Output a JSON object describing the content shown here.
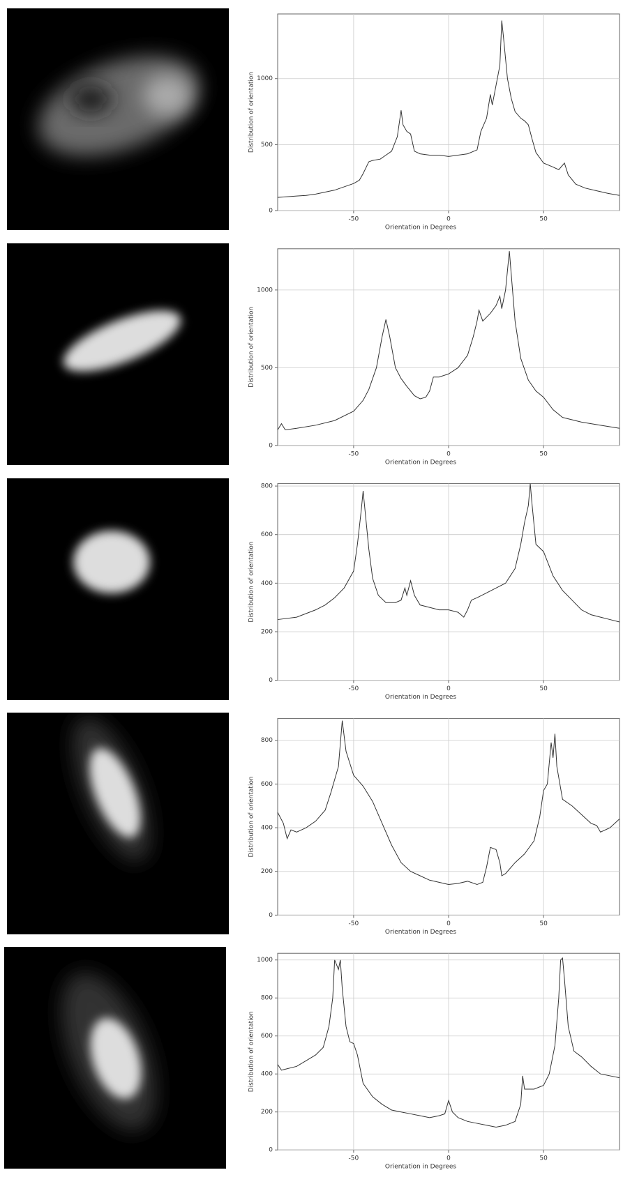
{
  "chart_data": [
    {
      "type": "line",
      "xlabel": "Orientation in Degrees",
      "ylabel": "Distribution of orientation",
      "xlim": [
        -90,
        90
      ],
      "xticks": [
        -50,
        0,
        50
      ],
      "ylim": [
        0,
        1490
      ],
      "yticks": [
        0,
        500,
        1000
      ],
      "grid": true,
      "series": [
        {
          "color": "#333333",
          "x": [
            -90,
            -85,
            -80,
            -75,
            -70,
            -65,
            -60,
            -55,
            -50,
            -47,
            -45,
            -42,
            -40,
            -36,
            -33,
            -30,
            -27,
            -25,
            -24,
            -22,
            -20,
            -18,
            -15,
            -10,
            -5,
            0,
            5,
            10,
            15,
            17,
            20,
            22,
            23,
            25,
            27,
            28,
            29,
            31,
            33,
            35,
            38,
            40,
            42,
            44,
            46,
            50,
            55,
            58,
            61,
            63,
            67,
            72,
            78,
            84,
            90
          ],
          "values": [
            100,
            105,
            110,
            115,
            125,
            140,
            155,
            180,
            205,
            230,
            280,
            370,
            380,
            390,
            420,
            450,
            560,
            760,
            650,
            600,
            580,
            450,
            430,
            420,
            420,
            410,
            420,
            430,
            460,
            600,
            700,
            880,
            800,
            950,
            1100,
            1440,
            1300,
            1000,
            850,
            750,
            700,
            680,
            650,
            540,
            440,
            360,
            330,
            310,
            360,
            270,
            200,
            170,
            150,
            130,
            115
          ]
        }
      ]
    },
    {
      "type": "line",
      "xlabel": "Orientation in Degrees",
      "ylabel": "Distribution of orientation",
      "xlim": [
        -90,
        90
      ],
      "xticks": [
        -50,
        0,
        50
      ],
      "ylim": [
        0,
        1265
      ],
      "yticks": [
        0,
        500,
        1000
      ],
      "grid": true,
      "series": [
        {
          "color": "#333333",
          "x": [
            -90,
            -88,
            -86,
            -80,
            -70,
            -60,
            -50,
            -45,
            -42,
            -38,
            -35,
            -33,
            -31,
            -28,
            -25,
            -22,
            -18,
            -15,
            -12,
            -10,
            -8,
            -5,
            0,
            5,
            10,
            13,
            15,
            16,
            18,
            22,
            25,
            27,
            28,
            30,
            32,
            33,
            35,
            38,
            42,
            46,
            50,
            55,
            60,
            70,
            80,
            90
          ],
          "values": [
            100,
            140,
            100,
            110,
            130,
            160,
            220,
            290,
            360,
            500,
            700,
            810,
            700,
            500,
            430,
            380,
            320,
            300,
            310,
            350,
            440,
            440,
            460,
            500,
            580,
            700,
            800,
            870,
            800,
            850,
            900,
            960,
            880,
            1000,
            1250,
            1100,
            800,
            560,
            420,
            350,
            310,
            230,
            180,
            150,
            130,
            110
          ]
        }
      ]
    },
    {
      "type": "line",
      "xlabel": "Orientation in Degrees",
      "ylabel": "Distribution of orientation",
      "xlim": [
        -90,
        90
      ],
      "xticks": [
        -50,
        0,
        50
      ],
      "ylim": [
        0,
        810
      ],
      "yticks": [
        0,
        200,
        400,
        600,
        800
      ],
      "grid": true,
      "series": [
        {
          "color": "#333333",
          "x": [
            -90,
            -80,
            -70,
            -65,
            -60,
            -55,
            -50,
            -48,
            -46,
            -45,
            -44,
            -42,
            -40,
            -37,
            -33,
            -28,
            -25,
            -23,
            -22,
            -20,
            -18,
            -15,
            -10,
            -5,
            0,
            5,
            8,
            10,
            12,
            15,
            20,
            25,
            30,
            35,
            38,
            40,
            42,
            43,
            44,
            46,
            50,
            55,
            60,
            65,
            70,
            75,
            80,
            85,
            90
          ],
          "values": [
            250,
            260,
            290,
            310,
            340,
            380,
            450,
            560,
            700,
            780,
            700,
            540,
            420,
            350,
            320,
            320,
            330,
            380,
            350,
            410,
            350,
            310,
            300,
            290,
            290,
            280,
            260,
            290,
            330,
            340,
            360,
            380,
            400,
            460,
            560,
            650,
            720,
            810,
            720,
            560,
            530,
            430,
            370,
            330,
            290,
            270,
            260,
            250,
            240
          ]
        }
      ]
    },
    {
      "type": "line",
      "xlabel": "Orientation in Degrees",
      "ylabel": "Distribution of orientation",
      "xlim": [
        -90,
        90
      ],
      "xticks": [
        -50,
        0,
        50
      ],
      "ylim": [
        0,
        900
      ],
      "yticks": [
        0,
        200,
        400,
        600,
        800
      ],
      "grid": true,
      "series": [
        {
          "color": "#333333",
          "x": [
            -90,
            -87,
            -85,
            -83,
            -80,
            -75,
            -70,
            -65,
            -62,
            -58,
            -56,
            -54,
            -50,
            -45,
            -40,
            -35,
            -30,
            -25,
            -20,
            -15,
            -10,
            -5,
            0,
            5,
            10,
            15,
            18,
            20,
            22,
            25,
            27,
            28,
            30,
            35,
            40,
            45,
            48,
            50,
            52,
            54,
            55,
            56,
            57,
            60,
            65,
            70,
            75,
            78,
            80,
            85,
            90
          ],
          "values": [
            470,
            420,
            350,
            390,
            380,
            400,
            430,
            480,
            560,
            680,
            890,
            750,
            640,
            590,
            520,
            420,
            320,
            240,
            200,
            180,
            160,
            150,
            140,
            145,
            155,
            140,
            150,
            220,
            310,
            300,
            240,
            180,
            190,
            240,
            280,
            340,
            450,
            570,
            600,
            790,
            720,
            830,
            680,
            530,
            500,
            460,
            420,
            410,
            380,
            400,
            440
          ]
        }
      ]
    },
    {
      "type": "line",
      "xlabel": "Orientation in Degrees",
      "ylabel": "Distribution of orientation",
      "xlim": [
        -90,
        90
      ],
      "xticks": [
        -50,
        0,
        50
      ],
      "ylim": [
        0,
        1035
      ],
      "yticks": [
        0,
        200,
        400,
        600,
        800,
        1000
      ],
      "grid": true,
      "series": [
        {
          "color": "#333333",
          "x": [
            -90,
            -88,
            -80,
            -75,
            -70,
            -66,
            -63,
            -61,
            -60,
            -58,
            -57,
            -56,
            -54,
            -52,
            -50,
            -48,
            -45,
            -40,
            -35,
            -30,
            -25,
            -20,
            -15,
            -10,
            -5,
            -2,
            0,
            2,
            5,
            10,
            15,
            20,
            25,
            30,
            35,
            38,
            39,
            40,
            45,
            50,
            53,
            56,
            58,
            59,
            60,
            61,
            63,
            66,
            70,
            75,
            80,
            85,
            90
          ],
          "values": [
            450,
            420,
            440,
            470,
            500,
            540,
            650,
            800,
            1000,
            950,
            1000,
            850,
            650,
            570,
            560,
            500,
            350,
            280,
            240,
            210,
            200,
            190,
            180,
            170,
            180,
            190,
            260,
            200,
            170,
            150,
            140,
            130,
            120,
            130,
            150,
            240,
            390,
            320,
            320,
            340,
            400,
            550,
            800,
            1000,
            1010,
            900,
            650,
            520,
            490,
            440,
            400,
            390,
            380
          ]
        }
      ]
    }
  ]
}
